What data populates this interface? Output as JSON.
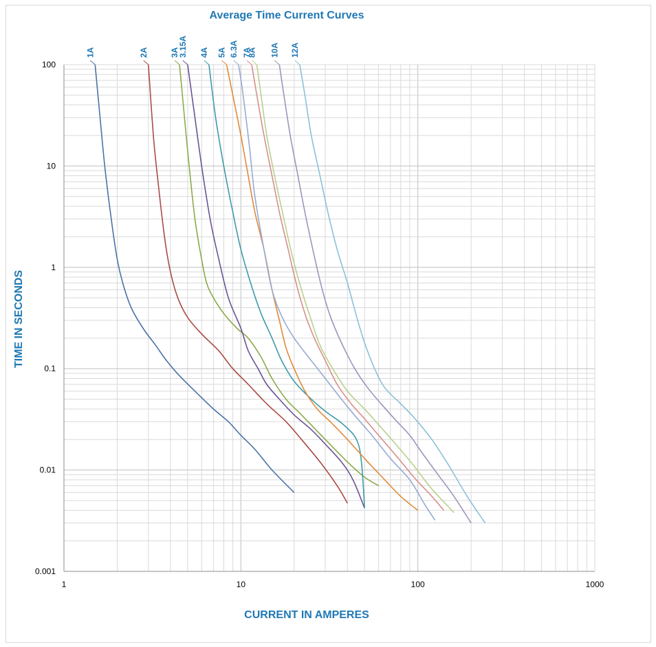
{
  "chart_data": {
    "type": "line",
    "title": "Average Time Current Curves",
    "xlabel": "CURRENT IN AMPERES",
    "ylabel": "TIME IN SECONDS",
    "x_scale": "log",
    "y_scale": "log",
    "xlim": [
      1,
      1000
    ],
    "ylim": [
      0.001,
      100
    ],
    "grid": true,
    "x_ticks": [
      "1",
      "10",
      "100",
      "1000"
    ],
    "y_ticks": [
      "100",
      "10",
      "1",
      "0.1",
      "0.01",
      "0.001"
    ],
    "series": [
      {
        "name": "1A",
        "color": "#4a72a8",
        "points": [
          [
            1.5,
            100
          ],
          [
            1.6,
            30
          ],
          [
            1.7,
            10
          ],
          [
            1.85,
            3
          ],
          [
            2.0,
            1.2
          ],
          [
            2.15,
            0.7
          ],
          [
            2.4,
            0.4
          ],
          [
            2.8,
            0.25
          ],
          [
            3.3,
            0.17
          ],
          [
            3.8,
            0.12
          ],
          [
            4.5,
            0.085
          ],
          [
            5.5,
            0.06
          ],
          [
            7,
            0.04
          ],
          [
            8.5,
            0.03
          ],
          [
            10,
            0.022
          ],
          [
            12,
            0.016
          ],
          [
            15,
            0.01
          ],
          [
            20,
            0.006
          ]
        ]
      },
      {
        "name": "2A",
        "color": "#a94a45",
        "points": [
          [
            3,
            100
          ],
          [
            3.2,
            20
          ],
          [
            3.4,
            7
          ],
          [
            3.7,
            2
          ],
          [
            4.0,
            0.9
          ],
          [
            4.4,
            0.5
          ],
          [
            5,
            0.32
          ],
          [
            6,
            0.22
          ],
          [
            7.5,
            0.15
          ],
          [
            9,
            0.1
          ],
          [
            11,
            0.07
          ],
          [
            14,
            0.045
          ],
          [
            18,
            0.03
          ],
          [
            22,
            0.02
          ],
          [
            28,
            0.012
          ],
          [
            35,
            0.007
          ],
          [
            40,
            0.0047
          ]
        ]
      },
      {
        "name": "3A",
        "color": "#8aaa4a",
        "points": [
          [
            4.5,
            100
          ],
          [
            4.8,
            30
          ],
          [
            5.1,
            10
          ],
          [
            5.5,
            3
          ],
          [
            6.0,
            1.2
          ],
          [
            6.4,
            0.7
          ],
          [
            7,
            0.5
          ],
          [
            8,
            0.35
          ],
          [
            9.5,
            0.25
          ],
          [
            11,
            0.2
          ],
          [
            13,
            0.13
          ],
          [
            15,
            0.08
          ],
          [
            18,
            0.05
          ],
          [
            22,
            0.035
          ],
          [
            30,
            0.02
          ],
          [
            40,
            0.012
          ],
          [
            50,
            0.0085
          ],
          [
            60,
            0.007
          ]
        ]
      },
      {
        "name": "3.15A",
        "color": "#6a5393",
        "points": [
          [
            5,
            100
          ],
          [
            5.5,
            30
          ],
          [
            6,
            10
          ],
          [
            6.7,
            3
          ],
          [
            7.5,
            1.2
          ],
          [
            8.5,
            0.5
          ],
          [
            10,
            0.25
          ],
          [
            11,
            0.15
          ],
          [
            12.5,
            0.1
          ],
          [
            14,
            0.07
          ],
          [
            16.5,
            0.05
          ],
          [
            20,
            0.035
          ],
          [
            25,
            0.025
          ],
          [
            30,
            0.018
          ],
          [
            37,
            0.012
          ],
          [
            43,
            0.008
          ],
          [
            50,
            0.0042
          ]
        ]
      },
      {
        "name": "4A",
        "color": "#3c9aaa",
        "points": [
          [
            6.6,
            100
          ],
          [
            7.2,
            30
          ],
          [
            8,
            10
          ],
          [
            9,
            3.5
          ],
          [
            10,
            1.5
          ],
          [
            11.5,
            0.65
          ],
          [
            13,
            0.35
          ],
          [
            15,
            0.2
          ],
          [
            17,
            0.12
          ],
          [
            20,
            0.075
          ],
          [
            25,
            0.05
          ],
          [
            30,
            0.038
          ],
          [
            38,
            0.028
          ],
          [
            45,
            0.02
          ],
          [
            48,
            0.012
          ],
          [
            50,
            0.0042
          ]
        ]
      },
      {
        "name": "5A",
        "color": "#e08a38",
        "points": [
          [
            8.3,
            100
          ],
          [
            9,
            50
          ],
          [
            10,
            20
          ],
          [
            11,
            8
          ],
          [
            12,
            3.5
          ],
          [
            13.5,
            1.5
          ],
          [
            15,
            0.6
          ],
          [
            16.5,
            0.3
          ],
          [
            18,
            0.16
          ],
          [
            20,
            0.1
          ],
          [
            23,
            0.06
          ],
          [
            27,
            0.04
          ],
          [
            32,
            0.03
          ],
          [
            40,
            0.02
          ],
          [
            50,
            0.013
          ],
          [
            65,
            0.008
          ],
          [
            80,
            0.0055
          ],
          [
            100,
            0.004
          ]
        ]
      },
      {
        "name": "6.3A",
        "color": "#95abd4",
        "points": [
          [
            9.7,
            100
          ],
          [
            10.3,
            50
          ],
          [
            11.2,
            15
          ],
          [
            12,
            5
          ],
          [
            13.5,
            1.5
          ],
          [
            15,
            0.6
          ],
          [
            17,
            0.33
          ],
          [
            20,
            0.2
          ],
          [
            25,
            0.12
          ],
          [
            30,
            0.08
          ],
          [
            37,
            0.05
          ],
          [
            45,
            0.033
          ],
          [
            55,
            0.022
          ],
          [
            70,
            0.013
          ],
          [
            90,
            0.008
          ],
          [
            110,
            0.0045
          ],
          [
            125,
            0.0032
          ]
        ]
      },
      {
        "name": "7A",
        "color": "#d88e8a",
        "points": [
          [
            11.5,
            100
          ],
          [
            12.3,
            50
          ],
          [
            13.5,
            20
          ],
          [
            15,
            8
          ],
          [
            16.5,
            3.5
          ],
          [
            18.5,
            1.5
          ],
          [
            20.5,
            0.7
          ],
          [
            23,
            0.35
          ],
          [
            26,
            0.2
          ],
          [
            30,
            0.12
          ],
          [
            35,
            0.07
          ],
          [
            42,
            0.045
          ],
          [
            50,
            0.032
          ],
          [
            60,
            0.022
          ],
          [
            75,
            0.014
          ],
          [
            95,
            0.0085
          ],
          [
            120,
            0.0055
          ],
          [
            140,
            0.004
          ]
        ]
      },
      {
        "name": "8A",
        "color": "#b8d08a",
        "points": [
          [
            12.3,
            100
          ],
          [
            13,
            50
          ],
          [
            14,
            20
          ],
          [
            15.5,
            8
          ],
          [
            17.5,
            3
          ],
          [
            19.5,
            1.3
          ],
          [
            22,
            0.6
          ],
          [
            25,
            0.3
          ],
          [
            28,
            0.17
          ],
          [
            33,
            0.1
          ],
          [
            40,
            0.06
          ],
          [
            50,
            0.04
          ],
          [
            60,
            0.028
          ],
          [
            75,
            0.018
          ],
          [
            95,
            0.011
          ],
          [
            120,
            0.0065
          ],
          [
            160,
            0.0038
          ]
        ]
      },
      {
        "name": "10A",
        "color": "#9d94bb",
        "points": [
          [
            16.5,
            100
          ],
          [
            17.5,
            50
          ],
          [
            19,
            20
          ],
          [
            21,
            8
          ],
          [
            23,
            3.5
          ],
          [
            25.5,
            1.5
          ],
          [
            28.5,
            0.65
          ],
          [
            32,
            0.33
          ],
          [
            37,
            0.18
          ],
          [
            44,
            0.1
          ],
          [
            52,
            0.065
          ],
          [
            62,
            0.045
          ],
          [
            75,
            0.031
          ],
          [
            90,
            0.022
          ],
          [
            105,
            0.015
          ],
          [
            130,
            0.009
          ],
          [
            160,
            0.0055
          ],
          [
            200,
            0.003
          ]
        ]
      },
      {
        "name": "12A",
        "color": "#8bc0d8",
        "points": [
          [
            21.5,
            100
          ],
          [
            23,
            50
          ],
          [
            25,
            20
          ],
          [
            28,
            8
          ],
          [
            31,
            3.5
          ],
          [
            35,
            1.5
          ],
          [
            40,
            0.7
          ],
          [
            45,
            0.33
          ],
          [
            50,
            0.18
          ],
          [
            57,
            0.1
          ],
          [
            65,
            0.065
          ],
          [
            80,
            0.045
          ],
          [
            95,
            0.033
          ],
          [
            120,
            0.02
          ],
          [
            150,
            0.011
          ],
          [
            190,
            0.0055
          ],
          [
            240,
            0.003
          ]
        ]
      }
    ]
  }
}
